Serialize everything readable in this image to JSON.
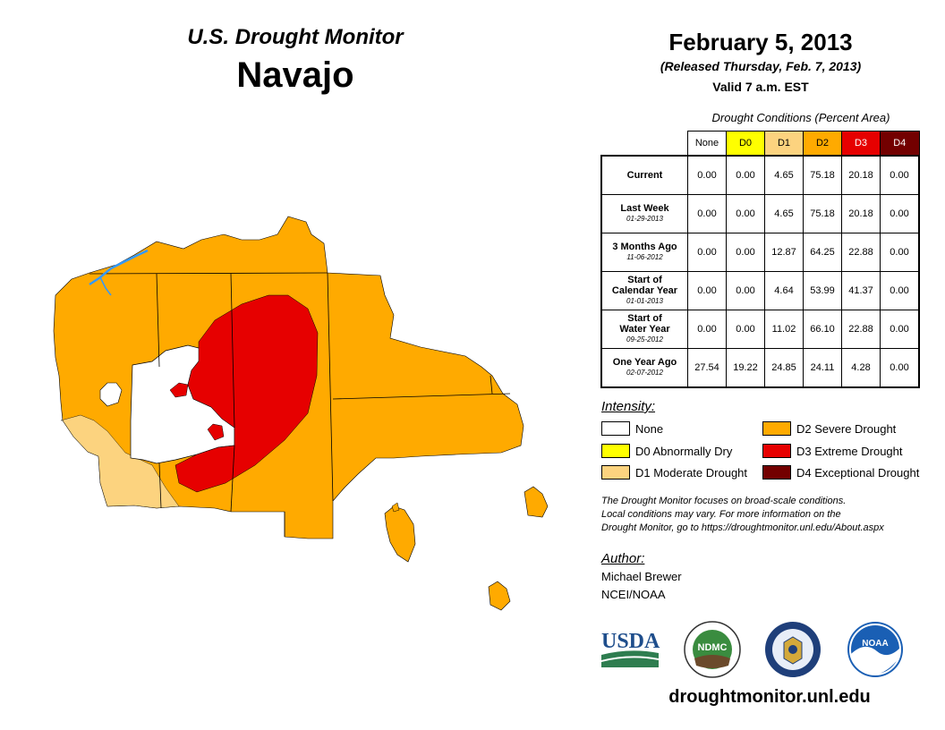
{
  "header": {
    "monitor_title": "U.S. Drought Monitor",
    "region": "Navajo",
    "date": "February 5, 2013",
    "released": "(Released Thursday, Feb. 7, 2013)",
    "valid": "Valid 7 a.m. EST"
  },
  "table": {
    "caption": "Drought Conditions (Percent Area)",
    "columns": [
      "None",
      "D0",
      "D1",
      "D2",
      "D3",
      "D4"
    ],
    "column_colors": [
      "#ffffff",
      "#ffff00",
      "#fcd37f",
      "#ffaa00",
      "#e60000",
      "#730000"
    ],
    "rows": [
      {
        "label": "Current",
        "label2": "",
        "date": "",
        "values": [
          "0.00",
          "0.00",
          "4.65",
          "75.18",
          "20.18",
          "0.00"
        ]
      },
      {
        "label": "Last Week",
        "label2": "",
        "date": "01-29-2013",
        "values": [
          "0.00",
          "0.00",
          "4.65",
          "75.18",
          "20.18",
          "0.00"
        ]
      },
      {
        "label": "3 Months Ago",
        "label2": "",
        "date": "11-06-2012",
        "values": [
          "0.00",
          "0.00",
          "12.87",
          "64.25",
          "22.88",
          "0.00"
        ]
      },
      {
        "label": "Start of",
        "label2": "Calendar Year",
        "date": "01-01-2013",
        "values": [
          "0.00",
          "0.00",
          "4.64",
          "53.99",
          "41.37",
          "0.00"
        ]
      },
      {
        "label": "Start of",
        "label2": "Water Year",
        "date": "09-25-2012",
        "values": [
          "0.00",
          "0.00",
          "11.02",
          "66.10",
          "22.88",
          "0.00"
        ]
      },
      {
        "label": "One Year Ago",
        "label2": "",
        "date": "02-07-2012",
        "values": [
          "27.54",
          "19.22",
          "24.85",
          "24.11",
          "4.28",
          "0.00"
        ]
      }
    ]
  },
  "legend": {
    "title": "Intensity:",
    "items": [
      {
        "label": "None",
        "color": "#ffffff"
      },
      {
        "label": "D0 Abnormally Dry",
        "color": "#ffff00"
      },
      {
        "label": "D1 Moderate Drought",
        "color": "#fcd37f"
      },
      {
        "label": "D2 Severe Drought",
        "color": "#ffaa00"
      },
      {
        "label": "D3 Extreme Drought",
        "color": "#e60000"
      },
      {
        "label": "D4 Exceptional Drought",
        "color": "#730000"
      }
    ]
  },
  "note": {
    "line1": "The Drought Monitor focuses on broad-scale conditions.",
    "line2": "Local conditions may vary. For more information on the",
    "line3": "Drought Monitor, go to https://droughtmonitor.unl.edu/About.aspx"
  },
  "author": {
    "title": "Author:",
    "name": "Michael Brewer",
    "org": "NCEI/NOAA"
  },
  "logos": {
    "usda": "USDA",
    "ndmc": "NDMC",
    "noaa": "NOAA"
  },
  "website": "droughtmonitor.unl.edu",
  "colors": {
    "d1": "#fcd37f",
    "d2": "#ffaa00",
    "d3": "#e60000",
    "river": "#3399ff"
  }
}
